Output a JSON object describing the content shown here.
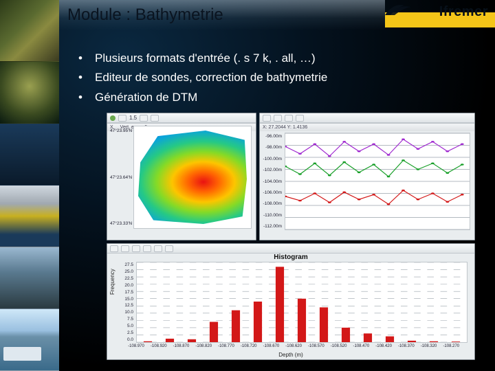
{
  "logo": {
    "text": "Ifremer"
  },
  "title": "Module : Bathymetrie",
  "bullets": [
    "Plusieurs formats d'entrée (. s 7 k, . all, …)",
    "Editeur de sondes, correction de bathymetrie",
    "Génération de DTM"
  ],
  "colors": {
    "accent_yellow": "#f5c518",
    "bar_color": "#d31818",
    "grid_color": "#9aa3ab",
    "panel_bg": "#e9edef",
    "plot_bg": "#ffffff"
  },
  "panelA": {
    "type": "heatmap",
    "footer_left": "X",
    "footer_mid": "Vert. exag. 6",
    "y_ticks": [
      "47°23.95'N",
      "47°23.64'N",
      "47°23.33'N"
    ],
    "rainbow_stops": [
      "#d31818",
      "#f06a12",
      "#f5c518",
      "#8bd63a",
      "#36c488",
      "#1aa0d0",
      "#1560c0",
      "#2a2aa0"
    ]
  },
  "panelB": {
    "type": "line",
    "y_ticks": [
      "-96.00m",
      "-98.00m",
      "-100.00m",
      "-102.00m",
      "-104.00m",
      "-106.00m",
      "-108.00m",
      "-110.00m",
      "-112.00m"
    ],
    "ylim": [
      -112,
      -96
    ],
    "series": [
      {
        "color": "#d31818",
        "points": [
          [
            0,
            -106.5
          ],
          [
            0.08,
            -107.2
          ],
          [
            0.16,
            -106.0
          ],
          [
            0.24,
            -107.5
          ],
          [
            0.32,
            -105.8
          ],
          [
            0.4,
            -107.0
          ],
          [
            0.48,
            -106.2
          ],
          [
            0.56,
            -107.8
          ],
          [
            0.64,
            -105.5
          ],
          [
            0.72,
            -107.0
          ],
          [
            0.8,
            -106.0
          ],
          [
            0.88,
            -107.4
          ],
          [
            0.96,
            -106.2
          ]
        ]
      },
      {
        "color": "#1aa02a",
        "points": [
          [
            0,
            -101.5
          ],
          [
            0.08,
            -102.8
          ],
          [
            0.16,
            -101.0
          ],
          [
            0.24,
            -103.0
          ],
          [
            0.32,
            -100.8
          ],
          [
            0.4,
            -102.5
          ],
          [
            0.48,
            -101.2
          ],
          [
            0.56,
            -103.2
          ],
          [
            0.64,
            -100.5
          ],
          [
            0.72,
            -102.0
          ],
          [
            0.8,
            -101.0
          ],
          [
            0.88,
            -102.6
          ],
          [
            0.96,
            -101.2
          ]
        ]
      },
      {
        "color": "#a02ad0",
        "points": [
          [
            0,
            -98.2
          ],
          [
            0.08,
            -99.4
          ],
          [
            0.16,
            -97.8
          ],
          [
            0.24,
            -99.8
          ],
          [
            0.32,
            -97.4
          ],
          [
            0.4,
            -99.0
          ],
          [
            0.48,
            -97.8
          ],
          [
            0.56,
            -99.6
          ],
          [
            0.64,
            -97.0
          ],
          [
            0.72,
            -98.6
          ],
          [
            0.8,
            -97.4
          ],
          [
            0.88,
            -99.0
          ],
          [
            0.96,
            -97.8
          ]
        ]
      }
    ],
    "footer": "X: 27.2044 Y: 1.4136"
  },
  "panelC": {
    "type": "histogram",
    "title": "Histogram",
    "ylabel": "Frequency",
    "xlabel": "Depth (m)",
    "y_ticks": [
      "0.0",
      "2.5",
      "5.0",
      "7.5",
      "10.0",
      "12.5",
      "15.0",
      "17.5",
      "20.0",
      "22.5",
      "25.0",
      "27.5"
    ],
    "ylim": [
      0,
      27.5
    ],
    "x_ticks": [
      "-108.970",
      "-108.920",
      "-108.870",
      "-108.820",
      "-108.770",
      "-108.720",
      "-108.670",
      "-108.620",
      "-108.570",
      "-108.520",
      "-108.470",
      "-108.420",
      "-108.370",
      "-108.320",
      "-108.270"
    ],
    "values": [
      0.3,
      1.2,
      1.0,
      7.0,
      11.0,
      14.0,
      26.0,
      15.0,
      12.0,
      5.0,
      3.0,
      2.0,
      0.5,
      0.3,
      0.2
    ],
    "bar_color": "#d31818",
    "bar_width": 0.38
  }
}
